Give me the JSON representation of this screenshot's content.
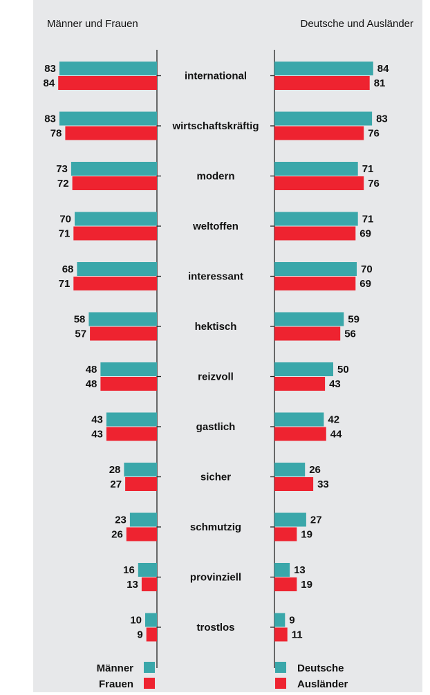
{
  "chart_data": {
    "type": "bar",
    "orientation": "horizontal",
    "colors": {
      "teal": "#3aa7aa",
      "red": "#ee2330"
    },
    "categories": [
      "international",
      "wirtschaftskräftig",
      "modern",
      "weltoffen",
      "interessant",
      "hektisch",
      "reizvoll",
      "gastlich",
      "sicher",
      "schmutzig",
      "provinziell",
      "trostlos"
    ],
    "panels": [
      {
        "title": "Männer und Frauen",
        "direction": "left",
        "series": [
          {
            "name": "Männer",
            "color": "#3aa7aa",
            "values": [
              83,
              83,
              73,
              70,
              68,
              58,
              48,
              43,
              28,
              23,
              16,
              10
            ]
          },
          {
            "name": "Frauen",
            "color": "#ee2330",
            "values": [
              84,
              78,
              72,
              71,
              71,
              57,
              48,
              43,
              27,
              26,
              13,
              9
            ]
          }
        ]
      },
      {
        "title": "Deutsche und Ausländer",
        "direction": "right",
        "series": [
          {
            "name": "Deutsche",
            "color": "#3aa7aa",
            "values": [
              84,
              83,
              71,
              71,
              70,
              59,
              50,
              42,
              26,
              27,
              13,
              9
            ]
          },
          {
            "name": "Ausländer",
            "color": "#ee2330",
            "values": [
              81,
              76,
              76,
              69,
              69,
              56,
              43,
              44,
              33,
              19,
              19,
              11
            ]
          }
        ]
      }
    ],
    "legend_placement": "bottom",
    "grid": false
  }
}
